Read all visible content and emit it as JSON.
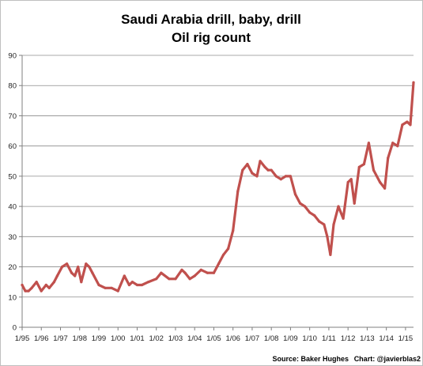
{
  "chart_data": {
    "type": "line",
    "title": "Saudi Arabia drill, baby, drill",
    "subtitle": "Oil rig count",
    "xlabel": "",
    "ylabel": "",
    "ylim": [
      0,
      90
    ],
    "y_ticks": [
      0,
      10,
      20,
      30,
      40,
      50,
      60,
      70,
      80,
      90
    ],
    "x_tick_labels": [
      "1/95",
      "1/96",
      "1/97",
      "1/98",
      "1/99",
      "1/00",
      "1/01",
      "1/02",
      "1/03",
      "1/04",
      "1/05",
      "1/06",
      "1/07",
      "1/08",
      "1/09",
      "1/10",
      "1/11",
      "1/12",
      "1/13",
      "1/14",
      "1/15"
    ],
    "x_range": [
      "1/95",
      "6/15"
    ],
    "grid": "horizontal",
    "legend": "none",
    "line_color": "#c0504d",
    "source_label": "Source: Baker Hughes",
    "credit_label": "Chart: @javierblas2",
    "series": [
      {
        "x": [
          "1/95",
          "3/95",
          "5/95",
          "7/95",
          "10/95",
          "1/96",
          "4/96",
          "6/96",
          "9/96",
          "11/96",
          "2/97",
          "5/97",
          "8/97",
          "10/97",
          "12/97",
          "2/98",
          "5/98",
          "7/98",
          "9/98",
          "1/99",
          "5/99",
          "9/99",
          "1/00",
          "5/00",
          "8/00",
          "10/00",
          "1/01",
          "4/01",
          "8/01",
          "1/02",
          "4/02",
          "9/02",
          "1/03",
          "5/03",
          "7/03",
          "10/03",
          "1/04",
          "5/04",
          "9/04",
          "1/05",
          "4/05",
          "7/05",
          "10/05",
          "1/06",
          "4/06",
          "7/06",
          "10/06",
          "1/07",
          "4/07",
          "6/07",
          "9/07",
          "11/07",
          "1/08",
          "4/08",
          "7/08",
          "10/08",
          "1/09",
          "4/09",
          "7/09",
          "10/09",
          "1/10",
          "4/10",
          "7/10",
          "10/10",
          "12/10",
          "2/11",
          "4/11",
          "7/11",
          "10/11",
          "1/12",
          "3/12",
          "5/12",
          "8/12",
          "11/12",
          "2/13",
          "5/13",
          "9/13",
          "12/13",
          "2/14",
          "5/14",
          "8/14",
          "11/14",
          "2/15",
          "4/15",
          "6/15"
        ],
        "values": [
          14,
          12,
          12,
          13,
          15,
          12,
          14,
          13,
          15,
          17,
          20,
          21,
          18,
          17,
          20,
          15,
          21,
          20,
          18,
          14,
          13,
          13,
          12,
          17,
          14,
          15,
          14,
          14,
          15,
          16,
          18,
          16,
          16,
          19,
          18,
          16,
          17,
          19,
          18,
          18,
          21,
          24,
          26,
          32,
          45,
          52,
          54,
          51,
          50,
          55,
          53,
          52,
          52,
          50,
          49,
          50,
          50,
          44,
          41,
          40,
          38,
          37,
          35,
          34,
          30,
          24,
          34,
          40,
          36,
          48,
          49,
          41,
          53,
          54,
          61,
          52,
          48,
          46,
          56,
          61,
          60,
          67,
          68,
          67,
          81
        ]
      }
    ]
  }
}
